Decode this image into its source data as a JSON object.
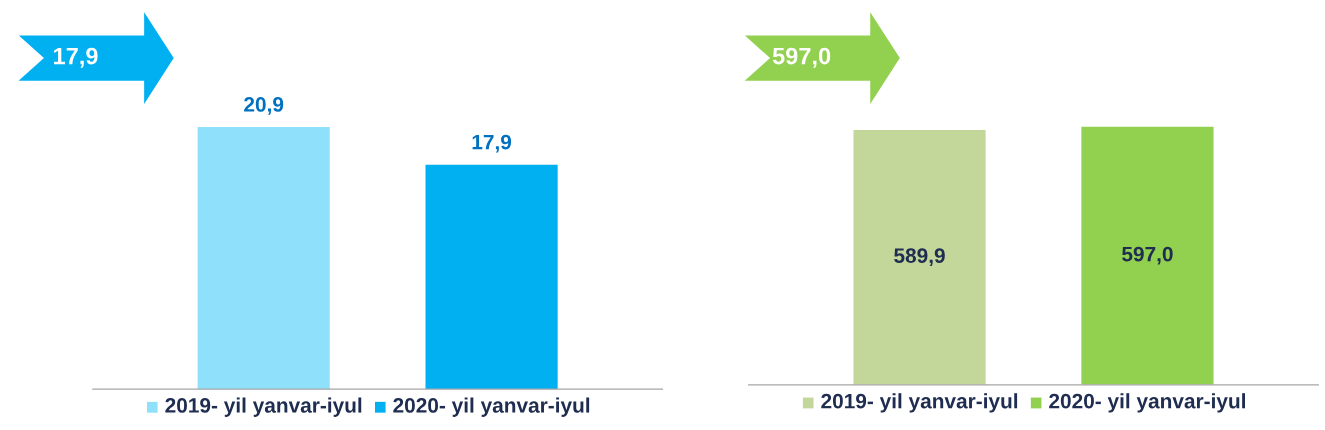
{
  "chart_data": [
    {
      "type": "bar",
      "categories": [
        "2019- yil yanvar-iyul",
        "2020- yil yanvar-iyul"
      ],
      "annotations": [
        "17,9"
      ],
      "series": [
        {
          "colors": [
            "#8ee0fb",
            "#00b0f0"
          ],
          "values": [
            20.9,
            17.9
          ],
          "value_labels": [
            "20,9",
            "17,9"
          ]
        }
      ]
    },
    {
      "type": "bar",
      "categories": [
        "2019- yil yanvar-iyul",
        "2020- yil yanvar-iyul"
      ],
      "annotations": [
        "597,0"
      ],
      "series": [
        {
          "colors": [
            "#c4d79b",
            "#92d050"
          ],
          "values": [
            589.9,
            597.0
          ],
          "value_labels": [
            "589,9",
            "597,0"
          ]
        }
      ]
    }
  ]
}
